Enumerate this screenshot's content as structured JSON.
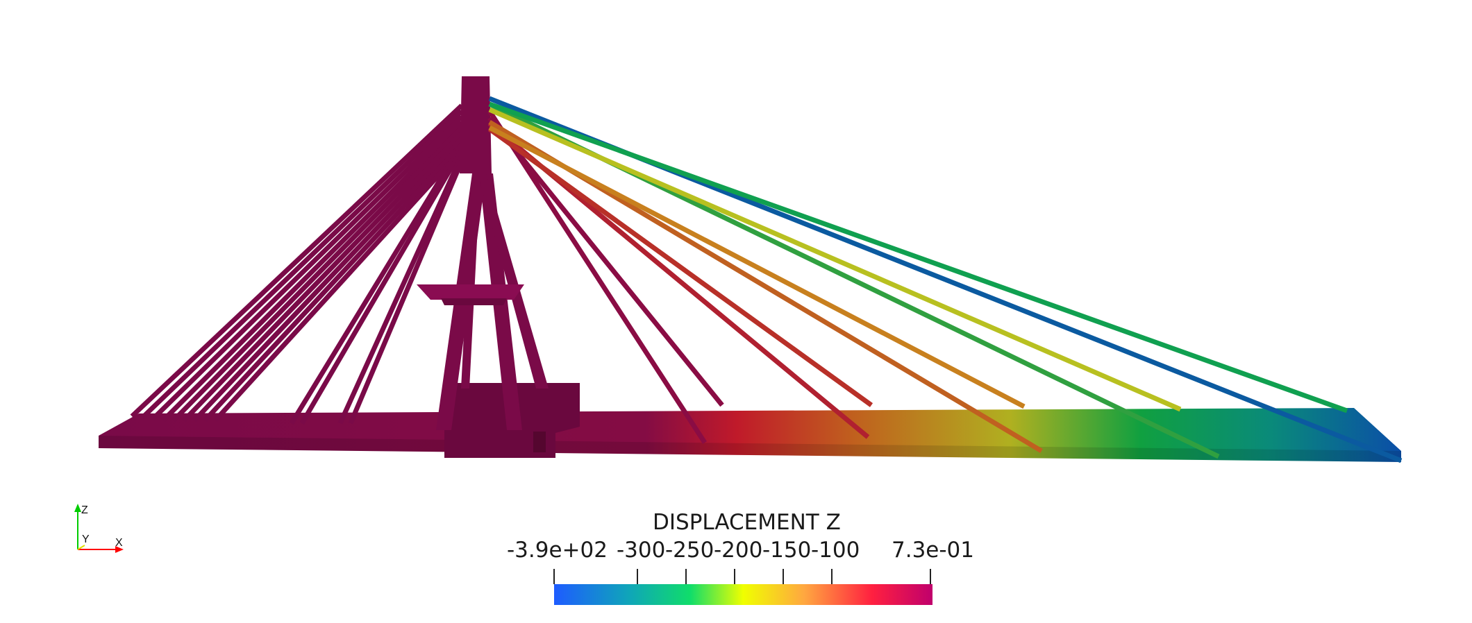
{
  "legend": {
    "title": "DISPLACEMENT Z",
    "min_label": "-3.9e+02",
    "max_label": "7.3e-01",
    "ticks": [
      "-300",
      "-250",
      "-200",
      "-150",
      "-100"
    ],
    "colors": [
      "#1e5cff",
      "#0fa6b8",
      "#10dd6a",
      "#f0ff00",
      "#ffa840",
      "#ff2040",
      "#c0006c"
    ]
  },
  "axes": {
    "z_label": "Z",
    "y_label": "Y",
    "x_label": "X",
    "x_color": "#ff0000",
    "y_color": "#ffff00",
    "z_color": "#00ff00"
  },
  "model": {
    "base_color": "#7a0a48",
    "description_colors": {
      "deck_start": "#7a0a48",
      "mid1": "#c01a2a",
      "mid2": "#b7a82a",
      "mid3": "#0fa050",
      "deck_end": "#0b4ea8"
    }
  }
}
